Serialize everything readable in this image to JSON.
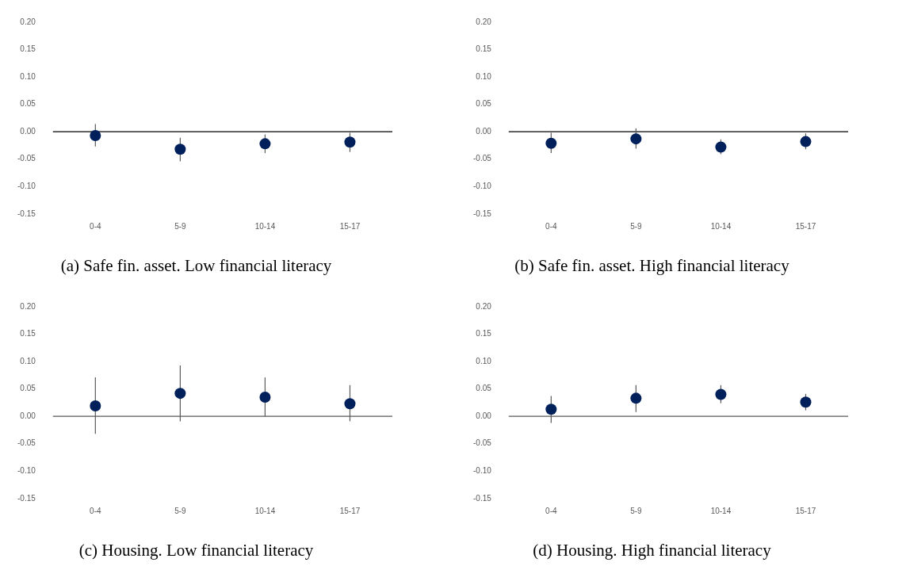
{
  "chart_data": [
    {
      "type": "scatter",
      "title": "(a) Safe fin. asset. Low financial literacy",
      "categories": [
        "0-4",
        "5-9",
        "10-14",
        "15-17"
      ],
      "values": [
        -0.007,
        -0.032,
        -0.022,
        -0.019
      ],
      "errors": [
        [
          -0.027,
          0.014
        ],
        [
          -0.054,
          -0.011
        ],
        [
          -0.039,
          -0.005
        ],
        [
          -0.037,
          -0.002
        ]
      ],
      "color": "#00205b",
      "marker": "circle",
      "ylim": [
        -0.15,
        0.2
      ],
      "yticks": [
        {
          "value": -0.15,
          "label": "-0.15"
        },
        {
          "value": -0.1,
          "label": "-0.10"
        },
        {
          "value": -0.05,
          "label": "-0.05"
        },
        {
          "value": 0,
          "label": "0.00"
        },
        {
          "value": 0.05,
          "label": "0.05"
        },
        {
          "value": 0.1,
          "label": "0.10"
        },
        {
          "value": 0.15,
          "label": "0.15"
        },
        {
          "value": 0.2,
          "label": "0.20"
        }
      ],
      "ref_lines": [
        {
          "axis": "y",
          "value": 0,
          "color": "#000000"
        }
      ]
    },
    {
      "type": "scatter",
      "title": "(b) Safe fin. asset. High financial literacy",
      "categories": [
        "0-4",
        "5-9",
        "10-14",
        "15-17"
      ],
      "values": [
        -0.021,
        -0.013,
        -0.028,
        -0.018
      ],
      "errors": [
        [
          -0.039,
          -0.002
        ],
        [
          -0.031,
          0.006
        ],
        [
          -0.041,
          -0.014
        ],
        [
          -0.032,
          -0.003
        ]
      ],
      "color": "#00205b",
      "marker": "circle",
      "ylim": [
        -0.15,
        0.2
      ],
      "yticks": [
        {
          "value": -0.15,
          "label": "-0.15"
        },
        {
          "value": -0.1,
          "label": "-0.10"
        },
        {
          "value": -0.05,
          "label": "-0.05"
        },
        {
          "value": 0,
          "label": "0.00"
        },
        {
          "value": 0.05,
          "label": "0.05"
        },
        {
          "value": 0.1,
          "label": "0.10"
        },
        {
          "value": 0.15,
          "label": "0.15"
        },
        {
          "value": 0.2,
          "label": "0.20"
        }
      ],
      "ref_lines": [
        {
          "axis": "y",
          "value": 0,
          "color": "#000000"
        }
      ]
    },
    {
      "type": "scatter",
      "title": "(c) Housing. Low financial literacy",
      "categories": [
        "0-4",
        "5-9",
        "10-14",
        "15-17"
      ],
      "values": [
        0.019,
        0.042,
        0.035,
        0.023
      ],
      "errors": [
        [
          -0.032,
          0.071
        ],
        [
          -0.009,
          0.093
        ],
        [
          0.0,
          0.071
        ],
        [
          -0.009,
          0.057
        ]
      ],
      "color": "#00205b",
      "marker": "circle",
      "ylim": [
        -0.15,
        0.2
      ],
      "yticks": [
        {
          "value": -0.15,
          "label": "-0.15"
        },
        {
          "value": -0.1,
          "label": "-0.10"
        },
        {
          "value": -0.05,
          "label": "-0.05"
        },
        {
          "value": 0,
          "label": "0.00"
        },
        {
          "value": 0.05,
          "label": "0.05"
        },
        {
          "value": 0.1,
          "label": "0.10"
        },
        {
          "value": 0.15,
          "label": "0.15"
        },
        {
          "value": 0.2,
          "label": "0.20"
        }
      ],
      "ref_lines": [
        {
          "axis": "y",
          "value": 0,
          "color": "#595959"
        }
      ]
    },
    {
      "type": "scatter",
      "title": "(d) Housing. High financial literacy",
      "categories": [
        "0-4",
        "5-9",
        "10-14",
        "15-17"
      ],
      "values": [
        0.013,
        0.033,
        0.04,
        0.026
      ],
      "errors": [
        [
          -0.012,
          0.037
        ],
        [
          0.008,
          0.057
        ],
        [
          0.024,
          0.057
        ],
        [
          0.011,
          0.041
        ]
      ],
      "color": "#00205b",
      "marker": "circle",
      "ylim": [
        -0.15,
        0.2
      ],
      "yticks": [
        {
          "value": -0.15,
          "label": "-0.15"
        },
        {
          "value": -0.1,
          "label": "-0.10"
        },
        {
          "value": -0.05,
          "label": "-0.05"
        },
        {
          "value": 0,
          "label": "0.00"
        },
        {
          "value": 0.05,
          "label": "0.05"
        },
        {
          "value": 0.1,
          "label": "0.10"
        },
        {
          "value": 0.15,
          "label": "0.15"
        },
        {
          "value": 0.2,
          "label": "0.20"
        }
      ],
      "ref_lines": [
        {
          "axis": "y",
          "value": 0,
          "color": "#595959"
        }
      ]
    }
  ]
}
